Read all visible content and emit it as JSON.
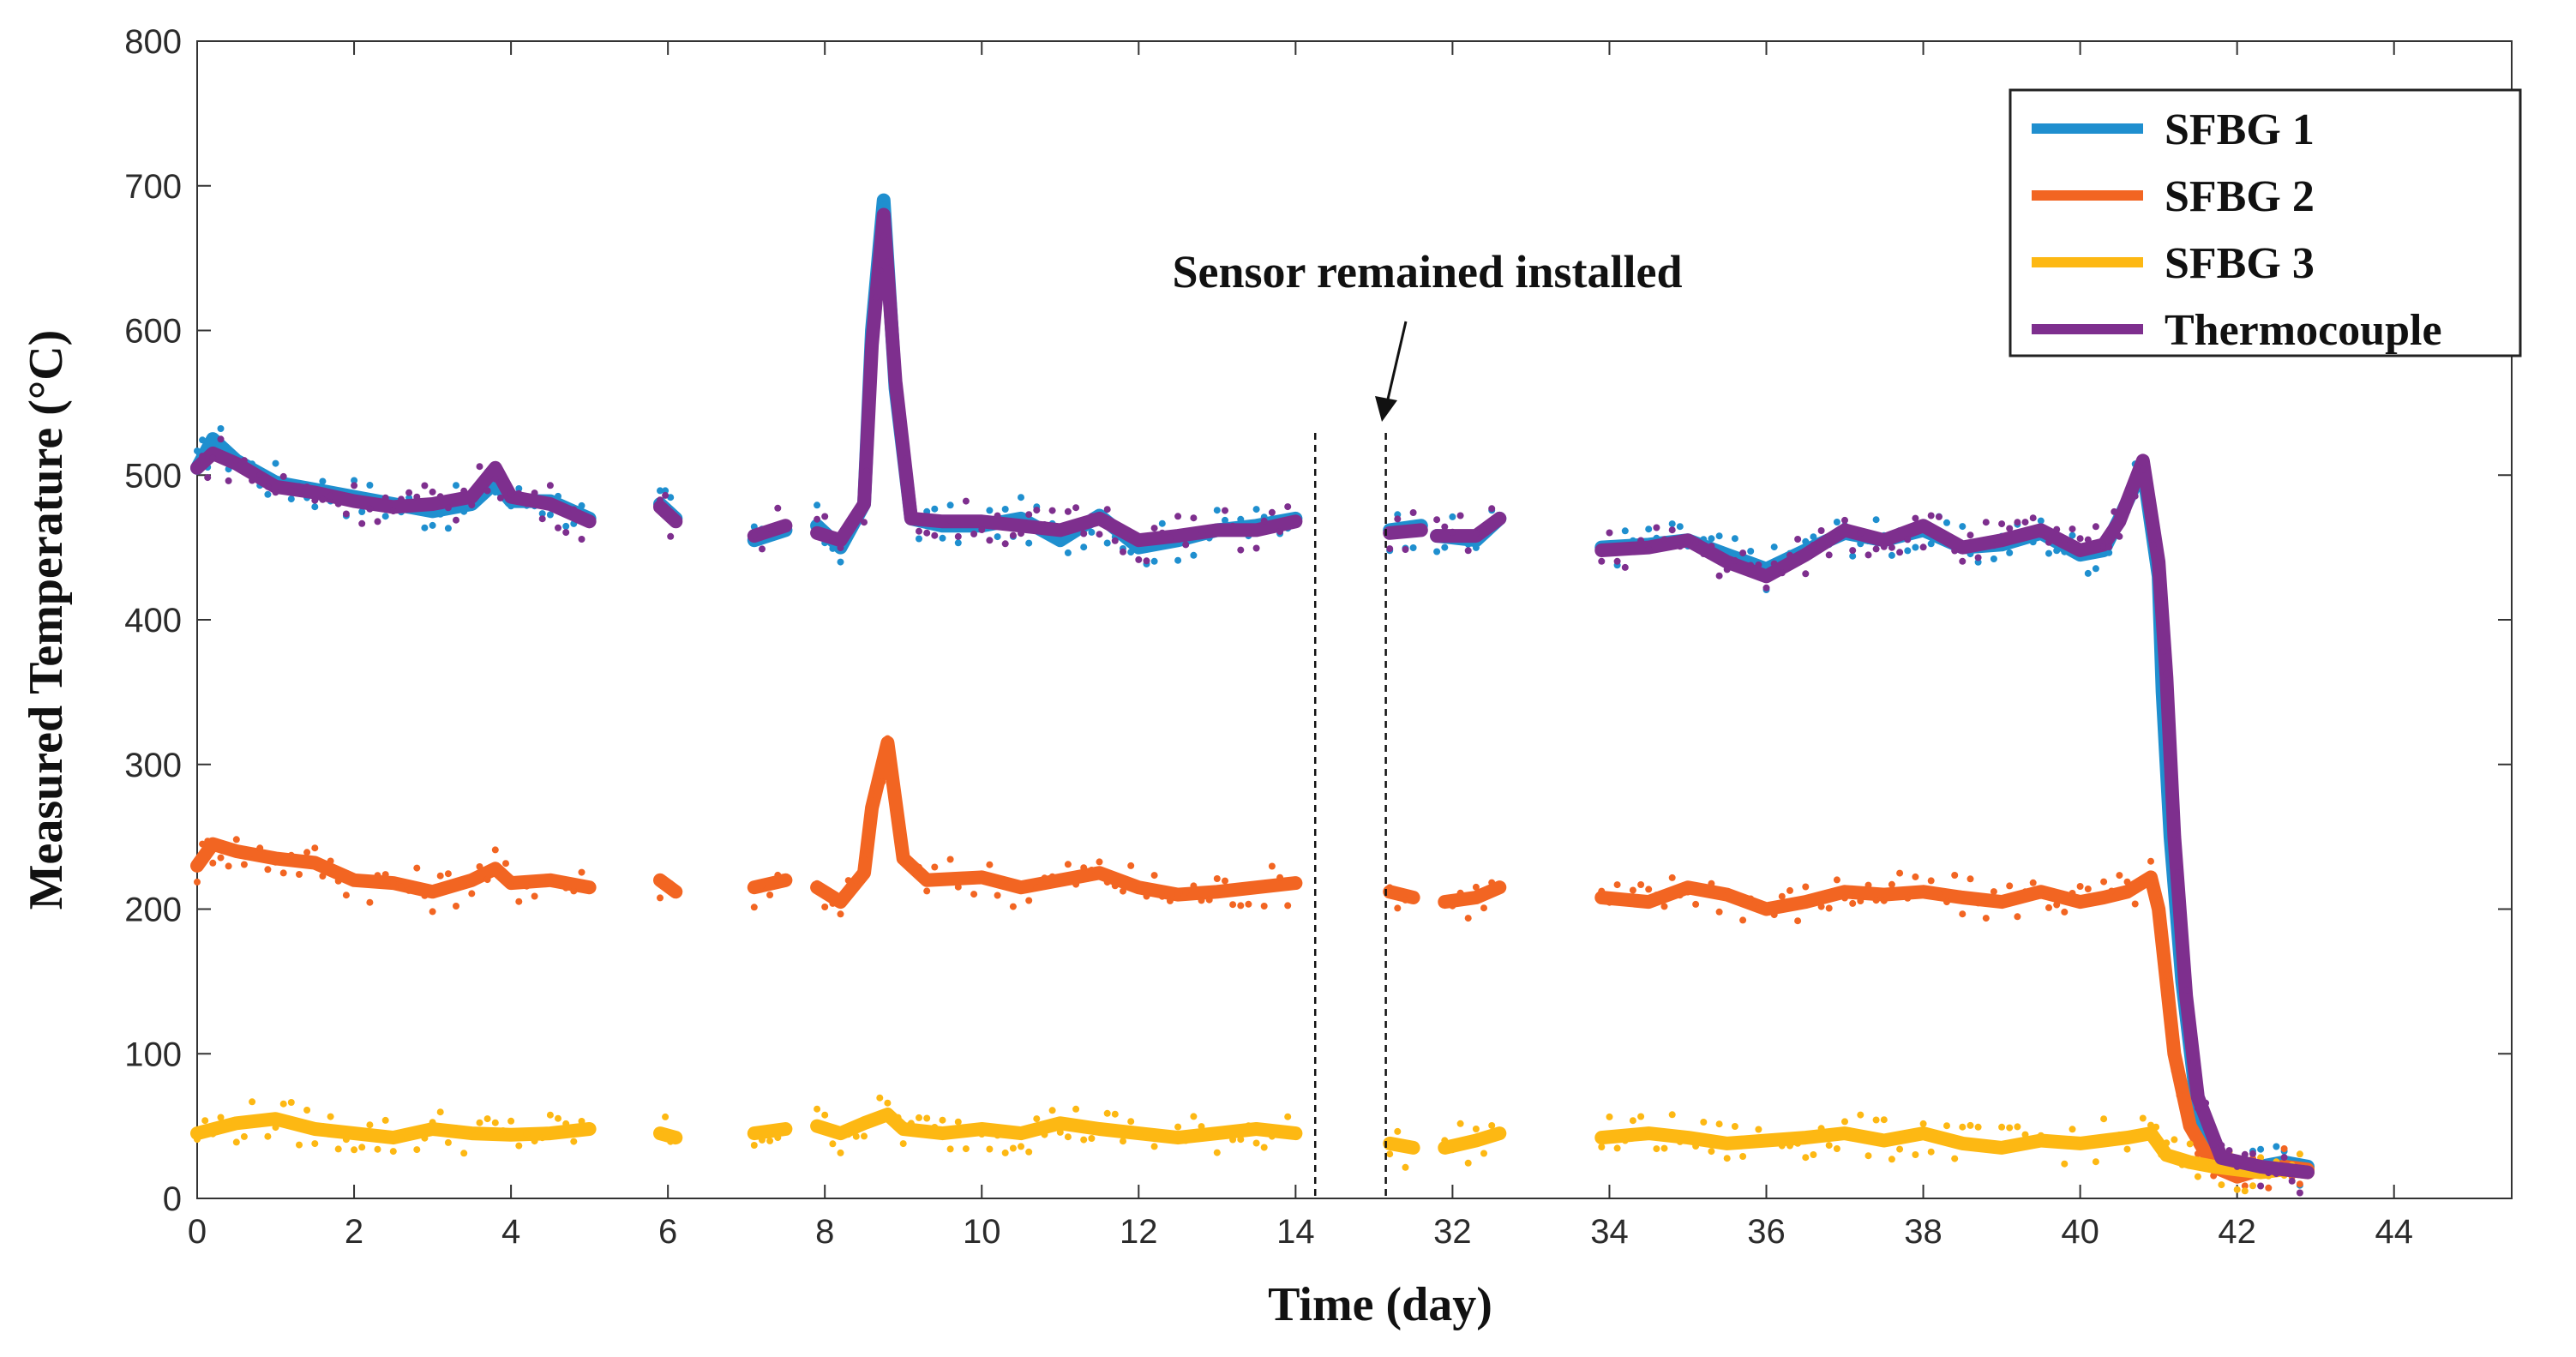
{
  "chart_data": {
    "type": "scatter",
    "title": "",
    "xlabel": "Time (day)",
    "ylabel": "Measured Temperature (°C)",
    "ylim": [
      0,
      800
    ],
    "yticks": [
      0,
      100,
      200,
      300,
      400,
      500,
      600,
      700,
      800
    ],
    "xticks": [
      "0",
      "2",
      "4",
      "6",
      "8",
      "10",
      "12",
      "14",
      "32",
      "34",
      "36",
      "38",
      "40",
      "42",
      "44"
    ],
    "axis_break": {
      "after_day": 14.3,
      "resume_day": 31.2,
      "note": "x axis jumps from 14 to 32"
    },
    "annotation": "Sensor remained installed",
    "legend_position": "top-right",
    "series": [
      {
        "name": "SFBG 1",
        "color": "#1f8fcf",
        "segments": [
          [
            [
              0,
              505
            ],
            [
              0.2,
              525
            ],
            [
              0.5,
              510
            ],
            [
              1,
              495
            ],
            [
              1.5,
              490
            ],
            [
              2,
              485
            ],
            [
              2.5,
              480
            ],
            [
              3,
              475
            ],
            [
              3.5,
              480
            ],
            [
              3.8,
              495
            ],
            [
              4,
              482
            ],
            [
              4.5,
              482
            ],
            [
              5,
              470
            ]
          ],
          [
            [
              5.9,
              480
            ],
            [
              6.1,
              470
            ]
          ],
          [
            [
              7.1,
              455
            ],
            [
              7.5,
              462
            ]
          ],
          [
            [
              7.9,
              465
            ],
            [
              8.2,
              450
            ],
            [
              8.5,
              480
            ],
            [
              8.6,
              600
            ],
            [
              8.75,
              690
            ],
            [
              8.9,
              560
            ],
            [
              9.1,
              470
            ],
            [
              9.5,
              465
            ],
            [
              10,
              465
            ],
            [
              10.5,
              470
            ],
            [
              11,
              455
            ],
            [
              11.5,
              472
            ],
            [
              12,
              450
            ],
            [
              12.5,
              455
            ],
            [
              13,
              462
            ],
            [
              13.5,
              465
            ],
            [
              14,
              470
            ]
          ],
          [
            [
              31.2,
              462
            ],
            [
              31.6,
              465
            ]
          ],
          [
            [
              31.8,
              458
            ],
            [
              32.3,
              455
            ],
            [
              32.6,
              470
            ]
          ],
          [
            [
              33.9,
              450
            ],
            [
              34.5,
              452
            ],
            [
              35,
              455
            ],
            [
              35.5,
              445
            ],
            [
              36,
              435
            ],
            [
              36.5,
              448
            ],
            [
              37,
              460
            ],
            [
              37.5,
              455
            ],
            [
              38,
              462
            ],
            [
              38.5,
              450
            ],
            [
              39,
              452
            ],
            [
              39.5,
              460
            ],
            [
              40,
              445
            ],
            [
              40.3,
              448
            ],
            [
              40.5,
              470
            ],
            [
              40.8,
              505
            ],
            [
              41,
              430
            ],
            [
              41.05,
              350
            ],
            [
              41.15,
              250
            ],
            [
              41.3,
              150
            ],
            [
              41.5,
              60
            ],
            [
              41.8,
              25
            ],
            [
              42.3,
              22
            ],
            [
              42.6,
              25
            ],
            [
              42.9,
              22
            ]
          ]
        ]
      },
      {
        "name": "SFBG 2",
        "color": "#f26522",
        "segments": [
          [
            [
              0,
              230
            ],
            [
              0.2,
              245
            ],
            [
              0.5,
              240
            ],
            [
              1,
              235
            ],
            [
              1.5,
              232
            ],
            [
              2,
              220
            ],
            [
              2.5,
              218
            ],
            [
              3,
              212
            ],
            [
              3.5,
              220
            ],
            [
              3.8,
              228
            ],
            [
              4,
              218
            ],
            [
              4.5,
              220
            ],
            [
              5,
              215
            ]
          ],
          [
            [
              5.9,
              220
            ],
            [
              6.1,
              212
            ]
          ],
          [
            [
              7.1,
              215
            ],
            [
              7.5,
              220
            ]
          ],
          [
            [
              7.9,
              215
            ],
            [
              8.2,
              205
            ],
            [
              8.5,
              225
            ],
            [
              8.6,
              270
            ],
            [
              8.8,
              315
            ],
            [
              9,
              235
            ],
            [
              9.3,
              220
            ],
            [
              10,
              222
            ],
            [
              10.5,
              215
            ],
            [
              11,
              220
            ],
            [
              11.5,
              225
            ],
            [
              12,
              215
            ],
            [
              12.5,
              210
            ],
            [
              13,
              212
            ],
            [
              13.5,
              215
            ],
            [
              14,
              218
            ]
          ],
          [
            [
              31.2,
              212
            ],
            [
              31.5,
              208
            ]
          ],
          [
            [
              31.9,
              205
            ],
            [
              32.3,
              208
            ],
            [
              32.6,
              215
            ]
          ],
          [
            [
              33.9,
              208
            ],
            [
              34.5,
              205
            ],
            [
              35,
              215
            ],
            [
              35.5,
              210
            ],
            [
              36,
              200
            ],
            [
              36.5,
              205
            ],
            [
              37,
              212
            ],
            [
              37.5,
              210
            ],
            [
              38,
              212
            ],
            [
              38.5,
              208
            ],
            [
              39,
              205
            ],
            [
              39.5,
              212
            ],
            [
              40,
              205
            ],
            [
              40.3,
              208
            ],
            [
              40.6,
              212
            ],
            [
              40.9,
              222
            ],
            [
              41,
              200
            ],
            [
              41.1,
              150
            ],
            [
              41.2,
              100
            ],
            [
              41.4,
              50
            ],
            [
              41.7,
              22
            ],
            [
              42,
              15
            ],
            [
              42.3,
              20
            ],
            [
              42.6,
              22
            ],
            [
              42.9,
              20
            ]
          ]
        ]
      },
      {
        "name": "SFBG 3",
        "color": "#fdb813",
        "segments": [
          [
            [
              0,
              45
            ],
            [
              0.5,
              52
            ],
            [
              1,
              55
            ],
            [
              1.5,
              48
            ],
            [
              2,
              45
            ],
            [
              2.5,
              42
            ],
            [
              3,
              48
            ],
            [
              3.5,
              45
            ],
            [
              4,
              44
            ],
            [
              4.5,
              45
            ],
            [
              5,
              48
            ]
          ],
          [
            [
              5.9,
              45
            ],
            [
              6.1,
              42
            ]
          ],
          [
            [
              7.1,
              45
            ],
            [
              7.5,
              48
            ]
          ],
          [
            [
              7.9,
              50
            ],
            [
              8.2,
              45
            ],
            [
              8.5,
              52
            ],
            [
              8.8,
              58
            ],
            [
              9,
              48
            ],
            [
              9.5,
              45
            ],
            [
              10,
              48
            ],
            [
              10.5,
              45
            ],
            [
              11,
              52
            ],
            [
              11.5,
              48
            ],
            [
              12,
              45
            ],
            [
              12.5,
              42
            ],
            [
              13,
              45
            ],
            [
              13.5,
              48
            ],
            [
              14,
              45
            ]
          ],
          [
            [
              31.2,
              38
            ],
            [
              31.5,
              35
            ]
          ],
          [
            [
              31.9,
              35
            ],
            [
              32.3,
              40
            ],
            [
              32.6,
              45
            ]
          ],
          [
            [
              33.9,
              42
            ],
            [
              34.5,
              45
            ],
            [
              35,
              42
            ],
            [
              35.5,
              38
            ],
            [
              36,
              40
            ],
            [
              36.5,
              42
            ],
            [
              37,
              45
            ],
            [
              37.5,
              40
            ],
            [
              38,
              45
            ],
            [
              38.5,
              38
            ],
            [
              39,
              35
            ],
            [
              39.5,
              40
            ],
            [
              40,
              38
            ],
            [
              40.3,
              40
            ],
            [
              40.6,
              42
            ],
            [
              40.9,
              45
            ],
            [
              41.1,
              30
            ],
            [
              41.4,
              25
            ],
            [
              41.7,
              22
            ],
            [
              42,
              20
            ],
            [
              42.3,
              18
            ],
            [
              42.6,
              20
            ],
            [
              42.9,
              18
            ]
          ]
        ]
      },
      {
        "name": "Thermocouple",
        "color": "#7e2f8e",
        "segments": [
          [
            [
              0,
              505
            ],
            [
              0.2,
              515
            ],
            [
              0.5,
              508
            ],
            [
              1,
              492
            ],
            [
              1.5,
              488
            ],
            [
              2,
              482
            ],
            [
              2.5,
              478
            ],
            [
              3,
              480
            ],
            [
              3.5,
              485
            ],
            [
              3.8,
              505
            ],
            [
              4,
              485
            ],
            [
              4.5,
              480
            ],
            [
              5,
              468
            ]
          ],
          [
            [
              5.9,
              478
            ],
            [
              6.1,
              468
            ]
          ],
          [
            [
              7.1,
              458
            ],
            [
              7.5,
              465
            ]
          ],
          [
            [
              7.9,
              460
            ],
            [
              8.2,
              455
            ],
            [
              8.5,
              480
            ],
            [
              8.6,
              590
            ],
            [
              8.75,
              680
            ],
            [
              8.9,
              565
            ],
            [
              9.1,
              470
            ],
            [
              9.5,
              468
            ],
            [
              10,
              468
            ],
            [
              10.5,
              465
            ],
            [
              11,
              462
            ],
            [
              11.5,
              470
            ],
            [
              12,
              455
            ],
            [
              12.5,
              458
            ],
            [
              13,
              462
            ],
            [
              13.5,
              462
            ],
            [
              14,
              468
            ]
          ],
          [
            [
              31.2,
              460
            ],
            [
              31.6,
              462
            ]
          ],
          [
            [
              31.8,
              458
            ],
            [
              32.3,
              458
            ],
            [
              32.6,
              470
            ]
          ],
          [
            [
              33.9,
              448
            ],
            [
              34.5,
              450
            ],
            [
              35,
              455
            ],
            [
              35.5,
              440
            ],
            [
              36,
              430
            ],
            [
              36.5,
              445
            ],
            [
              37,
              462
            ],
            [
              37.5,
              455
            ],
            [
              38,
              465
            ],
            [
              38.5,
              450
            ],
            [
              39,
              455
            ],
            [
              39.5,
              462
            ],
            [
              40,
              448
            ],
            [
              40.3,
              452
            ],
            [
              40.5,
              468
            ],
            [
              40.8,
              510
            ],
            [
              41,
              440
            ],
            [
              41.1,
              360
            ],
            [
              41.2,
              250
            ],
            [
              41.35,
              140
            ],
            [
              41.5,
              70
            ],
            [
              41.8,
              28
            ],
            [
              42.3,
              22
            ],
            [
              42.6,
              20
            ],
            [
              42.9,
              18
            ]
          ]
        ]
      }
    ]
  }
}
